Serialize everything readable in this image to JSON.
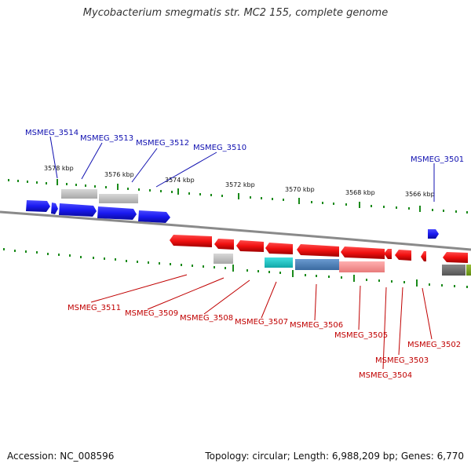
{
  "title": "Mycobacterium smegmatis str. MC2 155, complete genome",
  "footer": {
    "accession": "Accession: NC_008596",
    "summary": "Topology: circular; Length: 6,988,209 bp; Genes: 6,770"
  },
  "colors": {
    "forward_gene": "#1a1af0",
    "reverse_gene": "#f01010",
    "tick": "#1a8a1a",
    "backbone": "#8a8a8a"
  },
  "kbp_labels": [
    "3578 kbp",
    "3576 kbp",
    "3574 kbp",
    "3572 kbp",
    "3570 kbp",
    "3568 kbp",
    "3566 kbp"
  ],
  "forward_gene_labels": [
    "MSMEG_3514",
    "MSMEG_3513",
    "MSMEG_3512",
    "MSMEG_3510",
    "MSMEG_3501"
  ],
  "reverse_gene_labels": [
    "MSMEG_3511",
    "MSMEG_3509",
    "MSMEG_3508",
    "MSMEG_3507",
    "MSMEG_3506",
    "MSMEG_3505",
    "MSMEG_3503",
    "MSMEG_3504",
    "MSMEG_3502"
  ]
}
